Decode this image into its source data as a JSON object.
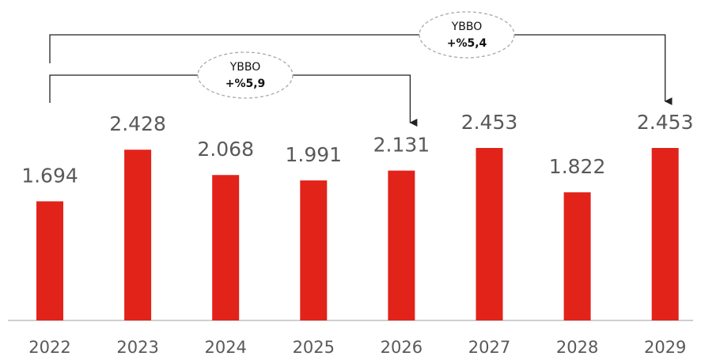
{
  "chart_data": {
    "type": "bar",
    "categories": [
      "2022",
      "2023",
      "2024",
      "2025",
      "2026",
      "2027",
      "2028",
      "2029"
    ],
    "values": [
      1694,
      2428,
      2068,
      1991,
      2131,
      2453,
      1822,
      2453
    ],
    "value_labels": [
      "1.694",
      "2.428",
      "2.068",
      "1.991",
      "2.131",
      "2.453",
      "1.822",
      "2.453"
    ],
    "color": "#e2231a",
    "annotations": [
      {
        "label": "YBBO",
        "text": "+%5,9"
      },
      {
        "label": "YBBO",
        "text": "+%5,4"
      }
    ]
  }
}
